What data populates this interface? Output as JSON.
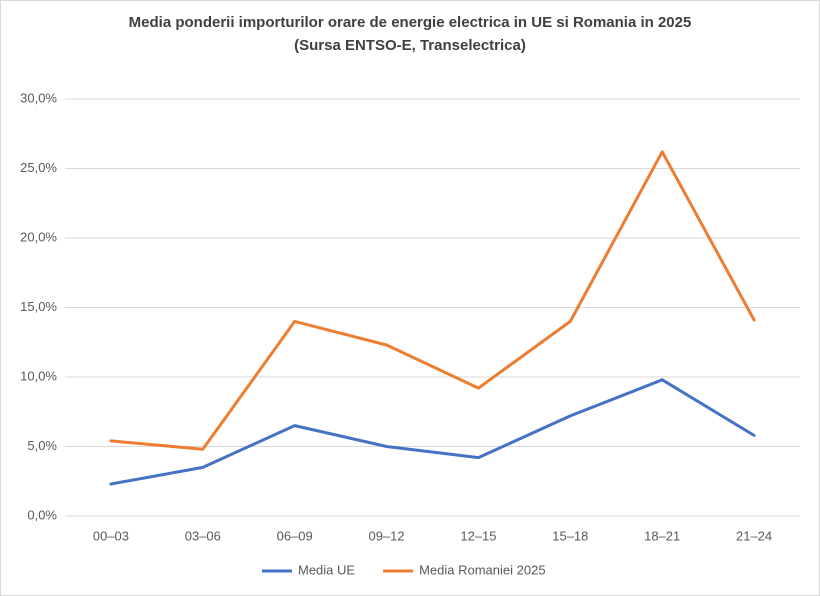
{
  "chart_data": {
    "type": "line",
    "title": "Media ponderii importurilor orare de energie electrica in UE si Romania in 2025",
    "subtitle": "(Sursa ENTSO-E, Transelectrica)",
    "categories": [
      "00–03",
      "03–06",
      "06–09",
      "09–12",
      "12–15",
      "15–18",
      "18–21",
      "21–24"
    ],
    "series": [
      {
        "name": "Media UE",
        "color": "#4472c4",
        "values": [
          2.3,
          3.5,
          6.5,
          5.0,
          4.2,
          7.2,
          9.8,
          5.8
        ]
      },
      {
        "name": "Media Romaniei 2025",
        "color": "#ed7d31",
        "values": [
          5.4,
          4.8,
          14.0,
          12.3,
          9.2,
          14.0,
          26.2,
          14.1
        ]
      }
    ],
    "ylim": [
      0,
      30
    ],
    "yticks": [
      {
        "value": 0,
        "label": "0,0%"
      },
      {
        "value": 5,
        "label": "5,0%"
      },
      {
        "value": 10,
        "label": "10,0%"
      },
      {
        "value": 15,
        "label": "15,0%"
      },
      {
        "value": 20,
        "label": "20,0%"
      },
      {
        "value": 25,
        "label": "25,0%"
      },
      {
        "value": 30,
        "label": "30,0%"
      }
    ],
    "grid": true,
    "legend": "bottom"
  }
}
